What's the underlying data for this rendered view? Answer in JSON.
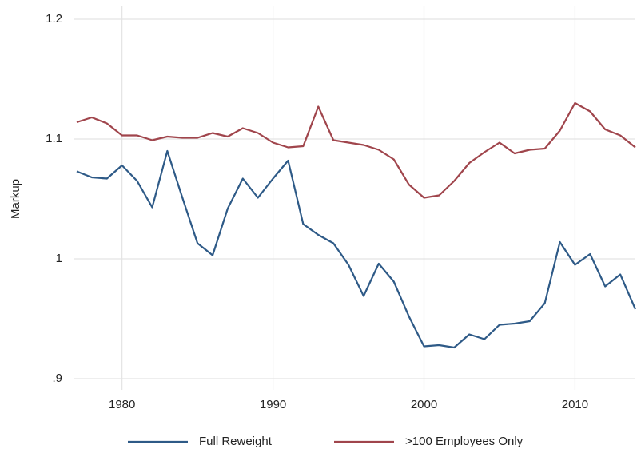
{
  "chart_data": {
    "type": "line",
    "y_label": "Markup",
    "x": [
      1977,
      1978,
      1979,
      1980,
      1981,
      1982,
      1983,
      1984,
      1985,
      1986,
      1987,
      1988,
      1989,
      1990,
      1991,
      1992,
      1993,
      1994,
      1995,
      1996,
      1997,
      1998,
      1999,
      2000,
      2001,
      2002,
      2003,
      2004,
      2005,
      2006,
      2007,
      2008,
      2009,
      2010,
      2011,
      2012,
      2013,
      2014
    ],
    "series": [
      {
        "name": "Full Reweight",
        "color": "#2e5a87",
        "values": [
          1.073,
          1.068,
          1.067,
          1.078,
          1.065,
          1.043,
          1.09,
          1.051,
          1.013,
          1.003,
          1.042,
          1.067,
          1.051,
          1.067,
          1.082,
          1.029,
          1.02,
          1.013,
          0.995,
          0.969,
          0.996,
          0.981,
          0.952,
          0.927,
          0.928,
          0.926,
          0.937,
          0.933,
          0.945,
          0.946,
          0.948,
          0.963,
          1.014,
          0.995,
          1.004,
          0.977,
          0.987,
          0.958
        ]
      },
      {
        "name": ">100 Employees Only",
        "color": "#a0454c",
        "values": [
          1.114,
          1.118,
          1.113,
          1.103,
          1.103,
          1.099,
          1.102,
          1.101,
          1.101,
          1.105,
          1.102,
          1.109,
          1.105,
          1.097,
          1.093,
          1.094,
          1.127,
          1.099,
          1.097,
          1.095,
          1.091,
          1.083,
          1.062,
          1.051,
          1.053,
          1.065,
          1.08,
          1.089,
          1.097,
          1.088,
          1.091,
          1.092,
          1.107,
          1.13,
          1.123,
          1.108,
          1.103,
          1.093
        ]
      }
    ],
    "xlim": [
      1977,
      2014
    ],
    "xticks": [
      1980,
      1990,
      2000,
      2010
    ],
    "ylim": [
      0.9,
      1.2
    ],
    "yticks": [
      {
        "value": 0.9,
        "label": ".9"
      },
      1,
      1.1,
      1.2
    ],
    "grid": true,
    "legend": "bottom"
  }
}
